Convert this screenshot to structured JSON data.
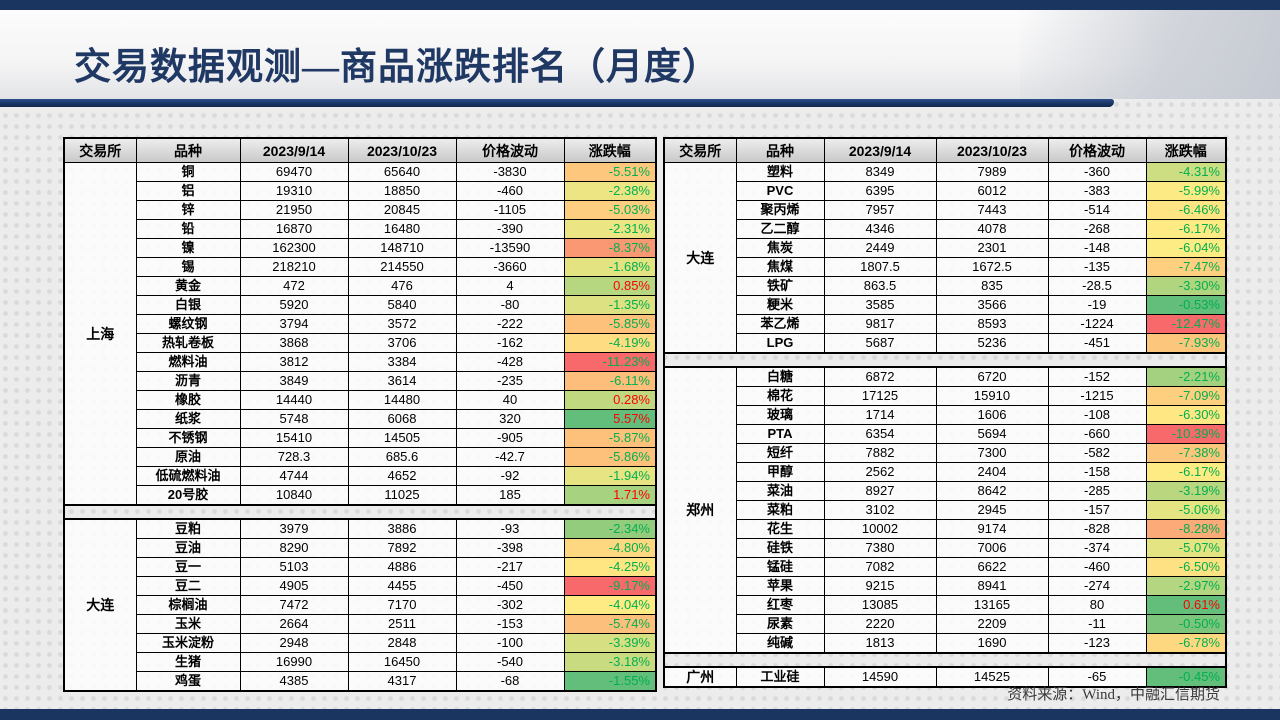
{
  "title": "交易数据观测—商品涨跌排名（月度）",
  "source_note": "资料来源：Wind，中融汇信期货",
  "colors": {
    "accent_navy": "#1A3560",
    "title_text": "#1F3864",
    "negative_text": "#00B050",
    "positive_text": "#FF0000",
    "scale_min": "#F8696B",
    "scale_mid": "#FFEB84",
    "scale_max": "#63BE7B"
  },
  "headers": [
    "交易所",
    "品种",
    "2023/9/14",
    "2023/10/23",
    "价格波动",
    "涨跌幅"
  ],
  "tables": [
    {
      "id": "left",
      "groups": [
        {
          "exchange": "上海",
          "rows": [
            {
              "variety": "铜",
              "price_0914": "69470",
              "price_1023": "65640",
              "change": "-3830",
              "pct": "-5.51%",
              "pct_bg": "#FDC77D"
            },
            {
              "variety": "铝",
              "price_0914": "19310",
              "price_1023": "18850",
              "change": "-460",
              "pct": "-2.38%",
              "pct_bg": "#EDE583"
            },
            {
              "variety": "锌",
              "price_0914": "21950",
              "price_1023": "20845",
              "change": "-1105",
              "pct": "-5.03%",
              "pct_bg": "#FDCE7F"
            },
            {
              "variety": "铅",
              "price_0914": "16870",
              "price_1023": "16480",
              "change": "-390",
              "pct": "-2.31%",
              "pct_bg": "#ECE583"
            },
            {
              "variety": "镍",
              "price_0914": "162300",
              "price_1023": "148710",
              "change": "-13590",
              "pct": "-8.37%",
              "pct_bg": "#FA9874"
            },
            {
              "variety": "锡",
              "price_0914": "218210",
              "price_1023": "214550",
              "change": "-3660",
              "pct": "-1.68%",
              "pct_bg": "#E3E382"
            },
            {
              "variety": "黄金",
              "price_0914": "472",
              "price_1023": "476",
              "change": "4",
              "pct": "0.85%",
              "pct_bg": "#B6D680"
            },
            {
              "variety": "白银",
              "price_0914": "5920",
              "price_1023": "5840",
              "change": "-80",
              "pct": "-1.35%",
              "pct_bg": "#DDE182"
            },
            {
              "variety": "螺纹钢",
              "price_0914": "3794",
              "price_1023": "3572",
              "change": "-222",
              "pct": "-5.85%",
              "pct_bg": "#FDC17C"
            },
            {
              "variety": "热轧卷板",
              "price_0914": "3868",
              "price_1023": "3706",
              "change": "-162",
              "pct": "-4.19%",
              "pct_bg": "#FEDC81"
            },
            {
              "variety": "燃料油",
              "price_0914": "3812",
              "price_1023": "3384",
              "change": "-428",
              "pct": "-11.23%",
              "pct_bg": "#F8696B"
            },
            {
              "variety": "沥青",
              "price_0914": "3849",
              "price_1023": "3614",
              "change": "-235",
              "pct": "-6.11%",
              "pct_bg": "#FDBD7B"
            },
            {
              "variety": "橡胶",
              "price_0914": "14440",
              "price_1023": "14480",
              "change": "40",
              "pct": "0.28%",
              "pct_bg": "#C0D980"
            },
            {
              "variety": "纸浆",
              "price_0914": "5748",
              "price_1023": "6068",
              "change": "320",
              "pct": "5.57%",
              "pct_bg": "#63BE7B"
            },
            {
              "variety": "不锈钢",
              "price_0914": "15410",
              "price_1023": "14505",
              "change": "-905",
              "pct": "-5.87%",
              "pct_bg": "#FDC17C"
            },
            {
              "variety": "原油",
              "price_0914": "728.3",
              "price_1023": "685.6",
              "change": "-42.7",
              "pct": "-5.86%",
              "pct_bg": "#FDC17C"
            },
            {
              "variety": "低硫燃料油",
              "price_0914": "4744",
              "price_1023": "4652",
              "change": "-92",
              "pct": "-1.94%",
              "pct_bg": "#E7E483"
            },
            {
              "variety": "20号胶",
              "price_0914": "10840",
              "price_1023": "11025",
              "change": "185",
              "pct": "1.71%",
              "pct_bg": "#A7D27F"
            }
          ]
        },
        {
          "exchange": "大连",
          "rows": [
            {
              "variety": "豆粕",
              "price_0914": "3979",
              "price_1023": "3886",
              "change": "-93",
              "pct": "-2.34%",
              "pct_bg": "#94CC7E"
            },
            {
              "variety": "豆油",
              "price_0914": "8290",
              "price_1023": "7892",
              "change": "-398",
              "pct": "-4.80%",
              "pct_bg": "#FED880"
            },
            {
              "variety": "豆一",
              "price_0914": "5103",
              "price_1023": "4886",
              "change": "-217",
              "pct": "-4.25%",
              "pct_bg": "#FFE683"
            },
            {
              "variety": "豆二",
              "price_0914": "4905",
              "price_1023": "4455",
              "change": "-450",
              "pct": "-9.17%",
              "pct_bg": "#F8696B"
            },
            {
              "variety": "棕榈油",
              "price_0914": "7472",
              "price_1023": "7170",
              "change": "-302",
              "pct": "-4.04%",
              "pct_bg": "#FFEB84"
            },
            {
              "variety": "玉米",
              "price_0914": "2664",
              "price_1023": "2511",
              "change": "-153",
              "pct": "-5.74%",
              "pct_bg": "#FDC07C"
            },
            {
              "variety": "玉米淀粉",
              "price_0914": "2948",
              "price_1023": "2848",
              "change": "-100",
              "pct": "-3.39%",
              "pct_bg": "#D6DF82"
            },
            {
              "variety": "生猪",
              "price_0914": "16990",
              "price_1023": "16450",
              "change": "-540",
              "pct": "-3.18%",
              "pct_bg": "#C9DB81"
            },
            {
              "variety": "鸡蛋",
              "price_0914": "4385",
              "price_1023": "4317",
              "change": "-68",
              "pct": "-1.55%",
              "pct_bg": "#63BE7B"
            }
          ]
        }
      ]
    },
    {
      "id": "right",
      "groups": [
        {
          "exchange": "大连",
          "rows": [
            {
              "variety": "塑料",
              "price_0914": "8349",
              "price_1023": "7989",
              "change": "-360",
              "pct": "-4.31%",
              "pct_bg": "#CDDD81"
            },
            {
              "variety": "PVC",
              "price_0914": "6395",
              "price_1023": "6012",
              "change": "-383",
              "pct": "-5.99%",
              "pct_bg": "#FCEA84"
            },
            {
              "variety": "聚丙烯",
              "price_0914": "7957",
              "price_1023": "7443",
              "change": "-514",
              "pct": "-6.46%",
              "pct_bg": "#FFE483"
            },
            {
              "variety": "乙二醇",
              "price_0914": "4346",
              "price_1023": "4078",
              "change": "-268",
              "pct": "-6.17%",
              "pct_bg": "#FFEA84"
            },
            {
              "variety": "焦炭",
              "price_0914": "2449",
              "price_1023": "2301",
              "change": "-148",
              "pct": "-6.04%",
              "pct_bg": "#FDEB84"
            },
            {
              "variety": "焦煤",
              "price_0914": "1807.5",
              "price_1023": "1672.5",
              "change": "-135",
              "pct": "-7.47%",
              "pct_bg": "#FECF7F"
            },
            {
              "variety": "铁矿",
              "price_0914": "863.5",
              "price_1023": "835",
              "change": "-28.5",
              "pct": "-3.30%",
              "pct_bg": "#B1D47F"
            },
            {
              "variety": "粳米",
              "price_0914": "3585",
              "price_1023": "3566",
              "change": "-19",
              "pct": "-0.53%",
              "pct_bg": "#63BE7B"
            },
            {
              "variety": "苯乙烯",
              "price_0914": "9817",
              "price_1023": "8593",
              "change": "-1224",
              "pct": "-12.47%",
              "pct_bg": "#F8696B"
            },
            {
              "variety": "LPG",
              "price_0914": "5687",
              "price_1023": "5236",
              "change": "-451",
              "pct": "-7.93%",
              "pct_bg": "#FDC67D"
            }
          ]
        },
        {
          "exchange": "郑州",
          "rows": [
            {
              "variety": "白糖",
              "price_0914": "6872",
              "price_1023": "6720",
              "change": "-152",
              "pct": "-2.21%",
              "pct_bg": "#A4D17F"
            },
            {
              "variety": "棉花",
              "price_0914": "17125",
              "price_1023": "15910",
              "change": "-1215",
              "pct": "-7.09%",
              "pct_bg": "#FDCF7F"
            },
            {
              "variety": "玻璃",
              "price_0914": "1714",
              "price_1023": "1606",
              "change": "-108",
              "pct": "-6.30%",
              "pct_bg": "#FFE783"
            },
            {
              "variety": "PTA",
              "price_0914": "6354",
              "price_1023": "5694",
              "change": "-660",
              "pct": "-10.39%",
              "pct_bg": "#F8696B"
            },
            {
              "variety": "短纤",
              "price_0914": "7882",
              "price_1023": "7300",
              "change": "-582",
              "pct": "-7.38%",
              "pct_bg": "#FDC67D"
            },
            {
              "variety": "甲醇",
              "price_0914": "2562",
              "price_1023": "2404",
              "change": "-158",
              "pct": "-6.17%",
              "pct_bg": "#FFEB84"
            },
            {
              "variety": "菜油",
              "price_0914": "8927",
              "price_1023": "8642",
              "change": "-285",
              "pct": "-3.19%",
              "pct_bg": "#BAD780"
            },
            {
              "variety": "菜粕",
              "price_0914": "3102",
              "price_1023": "2945",
              "change": "-157",
              "pct": "-5.06%",
              "pct_bg": "#E5E483"
            },
            {
              "variety": "花生",
              "price_0914": "10002",
              "price_1023": "9174",
              "change": "-828",
              "pct": "-8.28%",
              "pct_bg": "#FCAA78"
            },
            {
              "variety": "硅铁",
              "price_0914": "7380",
              "price_1023": "7006",
              "change": "-374",
              "pct": "-5.07%",
              "pct_bg": "#E5E483"
            },
            {
              "variety": "锰硅",
              "price_0914": "7082",
              "price_1023": "6622",
              "change": "-460",
              "pct": "-6.50%",
              "pct_bg": "#FEE182"
            },
            {
              "variety": "苹果",
              "price_0914": "9215",
              "price_1023": "8941",
              "change": "-274",
              "pct": "-2.97%",
              "pct_bg": "#B5D680"
            },
            {
              "variety": "红枣",
              "price_0914": "13085",
              "price_1023": "13165",
              "change": "80",
              "pct": "0.61%",
              "pct_bg": "#63BE7B"
            },
            {
              "variety": "尿素",
              "price_0914": "2220",
              "price_1023": "2209",
              "change": "-11",
              "pct": "-0.50%",
              "pct_bg": "#7DC57C"
            },
            {
              "variety": "纯碱",
              "price_0914": "1813",
              "price_1023": "1690",
              "change": "-123",
              "pct": "-6.78%",
              "pct_bg": "#FED880"
            }
          ]
        },
        {
          "exchange": "广州",
          "rows": [
            {
              "variety": "工业硅",
              "price_0914": "14590",
              "price_1023": "14525",
              "change": "-65",
              "pct": "-0.45%",
              "pct_bg": "#63BE7B"
            }
          ]
        }
      ]
    }
  ]
}
